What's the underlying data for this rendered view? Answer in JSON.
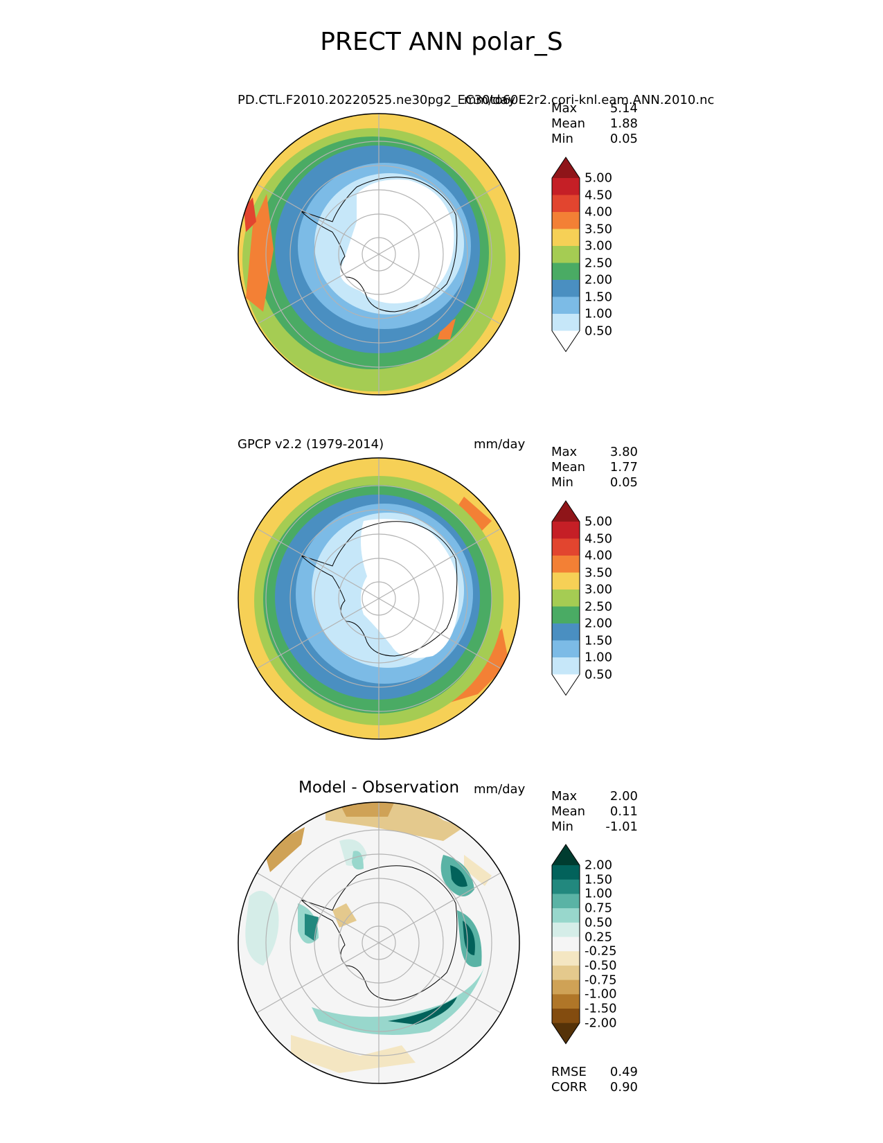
{
  "figure_title": "PRECT ANN polar_S",
  "panels": [
    {
      "id": "test",
      "title_left": "PD.CTL.F2010.20220525.ne30pg2_EC30to60E2r2.cori-knl.eam.ANN.2010.nc",
      "title_right": "mm/day",
      "stats": {
        "max_label": "Max",
        "max": "5.14",
        "mean_label": "Mean",
        "mean": "1.88",
        "min_label": "Min",
        "min": "0.05"
      },
      "colorbar": {
        "colors": [
          "#ffffff",
          "#c6e7f9",
          "#7cbbe6",
          "#4a8fc1",
          "#4aab64",
          "#a5cc53",
          "#f6d056",
          "#f38035",
          "#e2452f",
          "#c51f26",
          "#8f1519"
        ],
        "labels": [
          "0.50",
          "1.00",
          "1.50",
          "2.00",
          "2.50",
          "3.00",
          "3.50",
          "4.00",
          "4.50",
          "5.00"
        ]
      }
    },
    {
      "id": "ref",
      "title_left": "GPCP v2.2 (1979-2014)",
      "title_right": "mm/day",
      "stats": {
        "max_label": "Max",
        "max": "3.80",
        "mean_label": "Mean",
        "mean": "1.77",
        "min_label": "Min",
        "min": "0.05"
      },
      "colorbar": {
        "colors": [
          "#ffffff",
          "#c6e7f9",
          "#7cbbe6",
          "#4a8fc1",
          "#4aab64",
          "#a5cc53",
          "#f6d056",
          "#f38035",
          "#e2452f",
          "#c51f26",
          "#8f1519"
        ],
        "labels": [
          "0.50",
          "1.00",
          "1.50",
          "2.00",
          "2.50",
          "3.00",
          "3.50",
          "4.00",
          "4.50",
          "5.00"
        ]
      }
    },
    {
      "id": "diff",
      "title_center": "Model - Observation",
      "title_right": "mm/day",
      "stats": {
        "max_label": "Max",
        "max": "2.00",
        "mean_label": "Mean",
        "mean": "0.11",
        "min_label": "Min",
        "min": "-1.01"
      },
      "colorbar": {
        "colors": [
          "#553208",
          "#834c0f",
          "#b07628",
          "#cfa256",
          "#e4c98d",
          "#f4e6c2",
          "#f5f5f5",
          "#d5ede8",
          "#98d7cc",
          "#5ab3a5",
          "#22887e",
          "#02625b",
          "#003c30"
        ],
        "labels": [
          "-2.00",
          "-1.50",
          "-1.00",
          "-0.75",
          "-0.50",
          "-0.25",
          "0.25",
          "0.50",
          "0.75",
          "1.00",
          "1.50",
          "2.00"
        ]
      },
      "metrics": {
        "rmse_label": "RMSE",
        "rmse": "0.49",
        "corr_label": "CORR",
        "corr": "0.90"
      }
    }
  ]
}
